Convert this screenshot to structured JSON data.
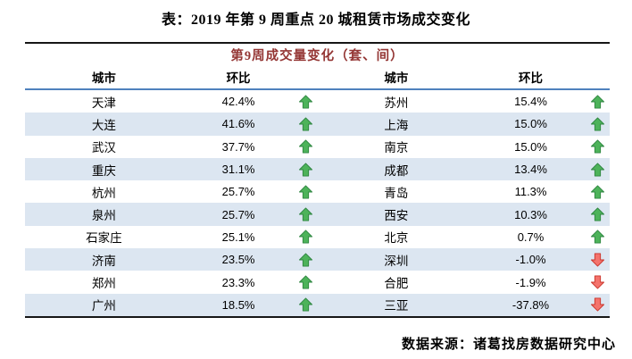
{
  "chart_data": {
    "type": "table",
    "title": "表：2019 年第 9 周重点 20 城租赁市场成交变化",
    "merged_header": "第9周成交量变化（套、间）",
    "columns": [
      "城市",
      "环比",
      "城市",
      "环比"
    ],
    "rows": [
      {
        "left": {
          "city": "天津",
          "wow": "42.4%",
          "trend": "up"
        },
        "right": {
          "city": "苏州",
          "wow": "15.4%",
          "trend": "up"
        }
      },
      {
        "left": {
          "city": "大连",
          "wow": "41.6%",
          "trend": "up"
        },
        "right": {
          "city": "上海",
          "wow": "15.0%",
          "trend": "up"
        }
      },
      {
        "left": {
          "city": "武汉",
          "wow": "37.7%",
          "trend": "up"
        },
        "right": {
          "city": "南京",
          "wow": "15.0%",
          "trend": "up"
        }
      },
      {
        "left": {
          "city": "重庆",
          "wow": "31.1%",
          "trend": "up"
        },
        "right": {
          "city": "成都",
          "wow": "13.4%",
          "trend": "up"
        }
      },
      {
        "left": {
          "city": "杭州",
          "wow": "25.7%",
          "trend": "up"
        },
        "right": {
          "city": "青岛",
          "wow": "11.3%",
          "trend": "up"
        }
      },
      {
        "left": {
          "city": "泉州",
          "wow": "25.7%",
          "trend": "up"
        },
        "right": {
          "city": "西安",
          "wow": "10.3%",
          "trend": "up"
        }
      },
      {
        "left": {
          "city": "石家庄",
          "wow": "25.1%",
          "trend": "up"
        },
        "right": {
          "city": "北京",
          "wow": "0.7%",
          "trend": "up"
        }
      },
      {
        "left": {
          "city": "济南",
          "wow": "23.5%",
          "trend": "up"
        },
        "right": {
          "city": "深圳",
          "wow": "-1.0%",
          "trend": "down"
        }
      },
      {
        "left": {
          "city": "郑州",
          "wow": "23.3%",
          "trend": "up"
        },
        "right": {
          "city": "合肥",
          "wow": "-1.9%",
          "trend": "down"
        }
      },
      {
        "left": {
          "city": "广州",
          "wow": "18.5%",
          "trend": "up"
        },
        "right": {
          "city": "三亚",
          "wow": "-37.8%",
          "trend": "down"
        }
      }
    ],
    "source": "数据来源：诸葛找房数据研究中心",
    "legend_position": "none",
    "grid": "row-banding"
  },
  "colors": {
    "header_red": "#943634",
    "rule_blue": "#4f81bd",
    "stripe_blue": "#dce6f1",
    "border_dark": "#161616",
    "up_green": "#4db35a",
    "up_green_dark": "#2e8540",
    "down_red": "#f4736c",
    "down_red_dark": "#c9342a"
  }
}
